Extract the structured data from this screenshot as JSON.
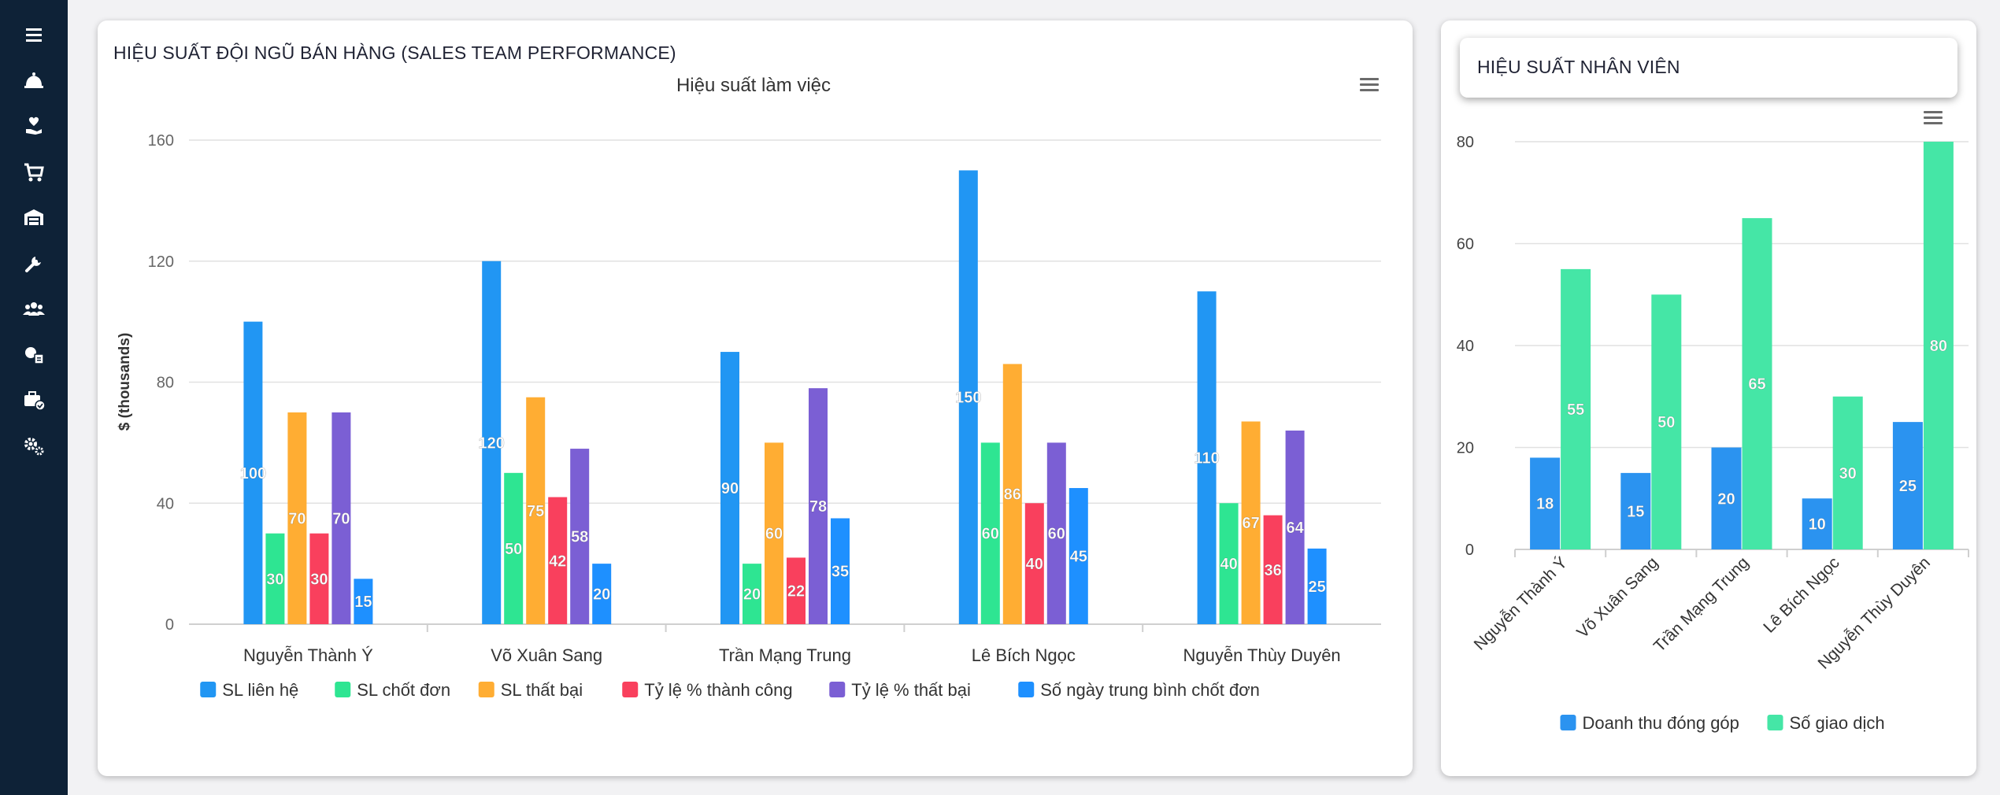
{
  "sidebar": {
    "items": [
      {
        "icon": "menu-icon"
      },
      {
        "icon": "bell-icon"
      },
      {
        "icon": "hand-heart-icon"
      },
      {
        "icon": "cart-icon"
      },
      {
        "icon": "warehouse-icon"
      },
      {
        "icon": "wrench-icon"
      },
      {
        "icon": "users-icon"
      },
      {
        "icon": "money-report-icon"
      },
      {
        "icon": "briefcase-check-icon"
      },
      {
        "icon": "gears-icon"
      }
    ]
  },
  "colors": {
    "sidebar_bg": "#0e2237",
    "blue": "#2196f3",
    "green": "#2ee592",
    "orange": "#ffad33",
    "red": "#f9405d",
    "purple": "#7b5fd4",
    "blue2": "#1e90ff",
    "green2": "#45e6a6"
  },
  "left_card": {
    "title": "HIỆU SUẤT ĐỘI NGŨ BÁN HÀNG (SALES TEAM PERFORMANCE)"
  },
  "right_card": {
    "title": "HIỆU SUẤT NHÂN VIÊN"
  },
  "chart_data": [
    {
      "type": "bar",
      "title": "Hiệu suất làm việc",
      "xlabel": "",
      "ylabel": "$ (thousands)",
      "ylim": [
        0,
        160
      ],
      "yticks": [
        0,
        40,
        80,
        120,
        160
      ],
      "grid": true,
      "legend": "bottom",
      "categories": [
        "Nguyễn Thành Ý",
        "Võ Xuân Sang",
        "Trần Mạng Trung",
        "Lê Bích Ngọc",
        "Nguyễn Thùy Duyên"
      ],
      "series": [
        {
          "name": "SL liên hệ",
          "color": "#2196f3",
          "values": [
            100,
            120,
            90,
            150,
            110
          ]
        },
        {
          "name": "SL chốt đơn",
          "color": "#2ee592",
          "values": [
            30,
            50,
            20,
            60,
            40
          ]
        },
        {
          "name": "SL thất bại",
          "color": "#ffad33",
          "values": [
            70,
            75,
            60,
            86,
            67
          ]
        },
        {
          "name": "Tỷ lệ % thành công",
          "color": "#f9405d",
          "values": [
            30,
            42,
            22,
            40,
            36
          ]
        },
        {
          "name": "Tỷ lệ % thất bại",
          "color": "#7b5fd4",
          "values": [
            70,
            58,
            78,
            60,
            64
          ]
        },
        {
          "name": "Số ngày trung bình chốt đơn",
          "color": "#1e90ff",
          "values": [
            15,
            20,
            35,
            45,
            25
          ]
        }
      ]
    },
    {
      "type": "bar",
      "title": "",
      "xlabel": "",
      "ylabel": "",
      "ylim": [
        0,
        80
      ],
      "yticks": [
        0,
        20,
        40,
        60,
        80
      ],
      "grid": true,
      "legend": "bottom",
      "categories": [
        "Nguyễn Thành Ý",
        "Võ Xuân Sang",
        "Trần Mạng Trung",
        "Lê Bích Ngọc",
        "Nguyễn Thùy Duyên"
      ],
      "series": [
        {
          "name": "Doanh thu đóng góp",
          "color": "#2b93f0",
          "values": [
            18,
            15,
            20,
            10,
            25
          ]
        },
        {
          "name": "Số giao dịch",
          "color": "#45e6a6",
          "values": [
            55,
            50,
            65,
            30,
            80
          ]
        }
      ]
    }
  ]
}
